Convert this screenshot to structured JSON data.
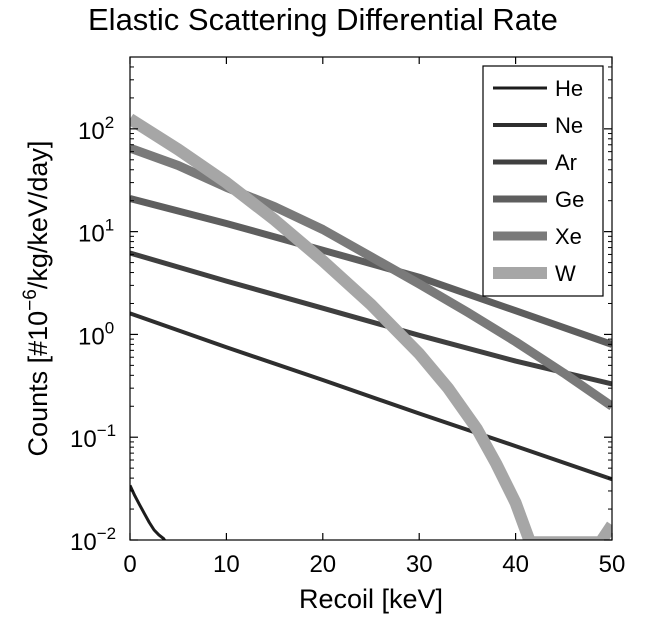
{
  "chart_data": {
    "type": "line",
    "title": "Elastic Scattering Differential Rate",
    "xlabel": "Recoil [keV]",
    "ylabel_prefix": "Counts [#10",
    "ylabel_exp": "−6",
    "ylabel_suffix": "/kg/keV/day]",
    "xlim": [
      0,
      50
    ],
    "ylim": [
      0.01,
      500
    ],
    "yscale": "log",
    "grid": false,
    "legend_position": "top-right",
    "x_ticks": [
      0,
      10,
      20,
      30,
      40,
      50
    ],
    "x_tick_labels": [
      "0",
      "10",
      "20",
      "30",
      "40",
      "50"
    ],
    "y_ticks": [
      0.01,
      0.1,
      1,
      10,
      100
    ],
    "y_tick_labels": [
      {
        "base": "10",
        "exp": "−2"
      },
      {
        "base": "10",
        "exp": "−1"
      },
      {
        "base": "10",
        "exp": "0"
      },
      {
        "base": "10",
        "exp": "1"
      },
      {
        "base": "10",
        "exp": "2"
      }
    ],
    "series": [
      {
        "name": "He",
        "color": "#1c1c1c",
        "width": 3,
        "x": [
          0,
          0.5,
          1,
          1.5,
          2,
          2.5,
          3,
          3.5,
          3.6
        ],
        "y": [
          0.034,
          0.027,
          0.022,
          0.018,
          0.0148,
          0.0125,
          0.0112,
          0.0103,
          0.0099
        ]
      },
      {
        "name": "Ne",
        "color": "#2e2e2e",
        "width": 4,
        "x": [
          0,
          10,
          20,
          30,
          40,
          50
        ],
        "y": [
          1.6,
          0.75,
          0.36,
          0.17,
          0.082,
          0.039
        ]
      },
      {
        "name": "Ar",
        "color": "#3f3f3f",
        "width": 5,
        "x": [
          0,
          10,
          20,
          30,
          40,
          50
        ],
        "y": [
          6.2,
          3.3,
          1.8,
          0.98,
          0.55,
          0.33
        ]
      },
      {
        "name": "Ge",
        "color": "#5e5e5e",
        "width": 7,
        "x": [
          0,
          10,
          20,
          30,
          40,
          50
        ],
        "y": [
          21,
          12,
          6.6,
          3.6,
          1.7,
          0.8
        ]
      },
      {
        "name": "Xe",
        "color": "#7a7a7a",
        "width": 9,
        "x": [
          0,
          5,
          10,
          15,
          20,
          25,
          30,
          35,
          40,
          45,
          50
        ],
        "y": [
          65,
          44,
          27,
          17.5,
          10.5,
          5.7,
          3.1,
          1.65,
          0.85,
          0.42,
          0.2
        ]
      },
      {
        "name": "W",
        "color": "#a6a6a6",
        "width": 12,
        "x": [
          0,
          5,
          10,
          15,
          20,
          25,
          30,
          33,
          36,
          38,
          40,
          41.5,
          48.8,
          50
        ],
        "y": [
          125,
          63,
          30,
          13,
          5.2,
          1.95,
          0.65,
          0.3,
          0.12,
          0.055,
          0.023,
          0.0095,
          0.0095,
          0.014
        ]
      }
    ]
  }
}
